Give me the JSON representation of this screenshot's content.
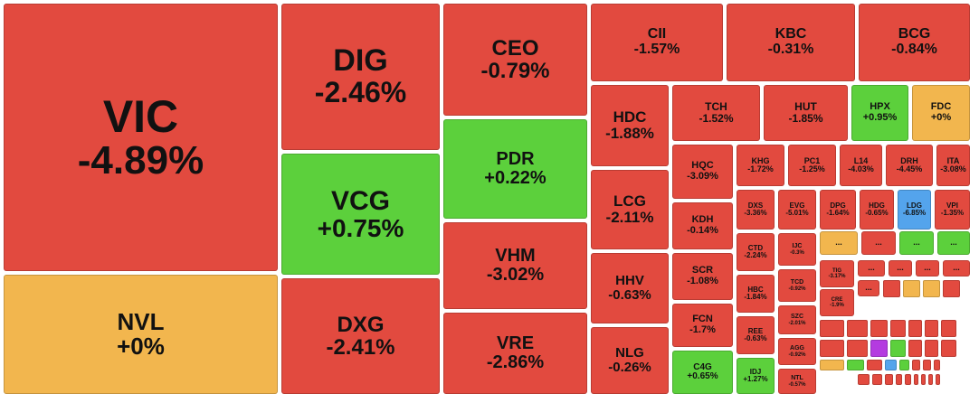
{
  "colors": {
    "down": "#e24a3f",
    "down_dark": "#d43a31",
    "ref": "#f2b64e",
    "up": "#5cd03c",
    "floor": "#54a4ec",
    "ceiling": "#b43be0"
  },
  "chart_data": {
    "type": "treemap",
    "tiles": [
      {
        "ticker": "VIC",
        "change": "-4.89%",
        "status": "down"
      },
      {
        "ticker": "NVL",
        "change": "+0%",
        "status": "ref"
      },
      {
        "ticker": "DIG",
        "change": "-2.46%",
        "status": "down"
      },
      {
        "ticker": "VCG",
        "change": "+0.75%",
        "status": "up"
      },
      {
        "ticker": "DXG",
        "change": "-2.41%",
        "status": "down"
      },
      {
        "ticker": "CEO",
        "change": "-0.79%",
        "status": "down"
      },
      {
        "ticker": "PDR",
        "change": "+0.22%",
        "status": "up"
      },
      {
        "ticker": "VHM",
        "change": "-3.02%",
        "status": "down"
      },
      {
        "ticker": "VRE",
        "change": "-2.86%",
        "status": "down"
      },
      {
        "ticker": "CII",
        "change": "-1.57%",
        "status": "down"
      },
      {
        "ticker": "KBC",
        "change": "-0.31%",
        "status": "down"
      },
      {
        "ticker": "BCG",
        "change": "-0.84%",
        "status": "down"
      },
      {
        "ticker": "HDC",
        "change": "-1.88%",
        "status": "down"
      },
      {
        "ticker": "LCG",
        "change": "-2.11%",
        "status": "down"
      },
      {
        "ticker": "HHV",
        "change": "-0.63%",
        "status": "down"
      },
      {
        "ticker": "NLG",
        "change": "-0.26%",
        "status": "down"
      },
      {
        "ticker": "TCH",
        "change": "-1.52%",
        "status": "down"
      },
      {
        "ticker": "HUT",
        "change": "-1.85%",
        "status": "down"
      },
      {
        "ticker": "HPX",
        "change": "+0.95%",
        "status": "up"
      },
      {
        "ticker": "FDC",
        "change": "+0%",
        "status": "ref"
      },
      {
        "ticker": "HQC",
        "change": "-3.09%",
        "status": "down"
      },
      {
        "ticker": "KDH",
        "change": "-0.14%",
        "status": "down"
      },
      {
        "ticker": "SCR",
        "change": "-1.08%",
        "status": "down"
      },
      {
        "ticker": "FCN",
        "change": "-1.7%",
        "status": "down"
      },
      {
        "ticker": "C4G",
        "change": "+0.65%",
        "status": "up"
      },
      {
        "ticker": "KHG",
        "change": "-1.72%",
        "status": "down"
      },
      {
        "ticker": "PC1",
        "change": "-1.25%",
        "status": "down"
      },
      {
        "ticker": "L14",
        "change": "-4.03%",
        "status": "down"
      },
      {
        "ticker": "DRH",
        "change": "-4.45%",
        "status": "down"
      },
      {
        "ticker": "ITA",
        "change": "-3.08%",
        "status": "down"
      },
      {
        "ticker": "DXS",
        "change": "-3.36%",
        "status": "down"
      },
      {
        "ticker": "EVG",
        "change": "-5.01%",
        "status": "down"
      },
      {
        "ticker": "DPG",
        "change": "-1.64%",
        "status": "down"
      },
      {
        "ticker": "HDG",
        "change": "-0.65%",
        "status": "down"
      },
      {
        "ticker": "LDG",
        "change": "-6.85%",
        "status": "floor"
      },
      {
        "ticker": "VPI",
        "change": "-1.35%",
        "status": "down"
      },
      {
        "ticker": "CTD",
        "change": "-2.24%",
        "status": "down"
      },
      {
        "ticker": "HBC",
        "change": "-1.84%",
        "status": "down"
      },
      {
        "ticker": "REE",
        "change": "-0.63%",
        "status": "down"
      },
      {
        "ticker": "IDJ",
        "change": "+1.27%",
        "status": "up"
      },
      {
        "ticker": "IJC",
        "change": "-0.3%",
        "status": "down"
      },
      {
        "ticker": "TCD",
        "change": "-0.92%",
        "status": "down"
      },
      {
        "ticker": "SZC",
        "change": "-2.01%",
        "status": "down"
      },
      {
        "ticker": "AGG",
        "change": "-0.92%",
        "status": "down"
      },
      {
        "ticker": "NTL",
        "change": "-0.57%",
        "status": "down"
      },
      {
        "ticker": "TIG",
        "change": "-3.17%",
        "status": "down"
      },
      {
        "ticker": "CRE",
        "change": "-1.9%",
        "status": "down"
      }
    ],
    "small_tiles": [
      {
        "label": "...",
        "status": "ref"
      },
      {
        "label": "...",
        "status": "down"
      },
      {
        "label": "...",
        "status": "up"
      },
      {
        "label": "...",
        "status": "up"
      },
      {
        "label": "...",
        "status": "down"
      },
      {
        "label": "...",
        "status": "down"
      },
      {
        "label": "...",
        "status": "down"
      },
      {
        "label": "...",
        "status": "down"
      },
      {
        "label": "...",
        "status": "down"
      }
    ],
    "micro_tiles": [
      "down",
      "ref",
      "ref",
      "down",
      "down",
      "down",
      "down",
      "down",
      "down",
      "down",
      "down",
      "down",
      "down",
      "ceiling",
      "up",
      "down",
      "down",
      "down",
      "ref",
      "up",
      "down",
      "floor",
      "up",
      "down",
      "down",
      "down",
      "down",
      "down",
      "down",
      "down",
      "down",
      "down",
      "down",
      "down",
      "down",
      "down",
      "down",
      "down",
      "down",
      "down",
      "down",
      "down",
      "down",
      "up",
      "up",
      "down",
      "down",
      "down",
      "up",
      "down"
    ]
  }
}
